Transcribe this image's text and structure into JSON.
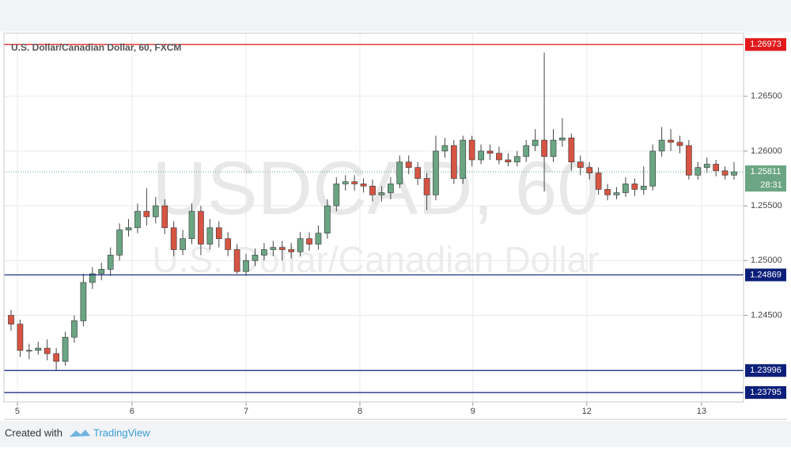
{
  "chart_data": {
    "type": "candlestick",
    "title": "U.S. Dollar/Canadian Dollar, 60, FXCM",
    "watermark": "USDCAD, 60",
    "watermark_subtitle": "U.S. Dollar/Canadian Dollar",
    "up_color": "#6ba583",
    "down_color": "#d75442",
    "open": [
      1.245,
      1.2442,
      1.2418,
      1.2418,
      1.242,
      1.2415,
      1.2408,
      1.243,
      1.2445,
      1.248,
      1.2488,
      1.2492,
      1.2505,
      1.2528,
      1.253,
      1.2545,
      1.254,
      1.255,
      1.253,
      1.251,
      1.252,
      1.2545,
      1.2515,
      1.253,
      1.252,
      1.251,
      1.249,
      1.25,
      1.2505,
      1.251,
      1.2512,
      1.251,
      1.2508,
      1.252,
      1.2515,
      1.2525,
      1.255,
      1.257,
      1.2572,
      1.257,
      1.2568,
      1.256,
      1.2562,
      1.257,
      1.259,
      1.2585,
      1.2575,
      1.256,
      1.26,
      1.2605,
      1.2575,
      1.261,
      1.2592,
      1.26,
      1.2598,
      1.2592,
      1.259,
      1.2595,
      1.2605,
      1.261,
      1.2595,
      1.261,
      1.2612,
      1.259,
      1.2585,
      1.258,
      1.2565,
      1.256,
      1.2562,
      1.257,
      1.2565,
      1.2568,
      1.26,
      1.261,
      1.2608,
      1.2605,
      1.2578,
      1.2585,
      1.2588,
      1.2582,
      1.2578
    ],
    "high": [
      1.2455,
      1.2446,
      1.2424,
      1.2426,
      1.2428,
      1.242,
      1.2435,
      1.245,
      1.2488,
      1.2494,
      1.2498,
      1.2512,
      1.2534,
      1.2538,
      1.2552,
      1.2566,
      1.2558,
      1.2556,
      1.2536,
      1.2528,
      1.2552,
      1.255,
      1.2538,
      1.2536,
      1.2526,
      1.2515,
      1.2506,
      1.2511,
      1.2516,
      1.2518,
      1.2518,
      1.2516,
      1.2526,
      1.2526,
      1.2532,
      1.2556,
      1.2576,
      1.2578,
      1.2578,
      1.2575,
      1.2574,
      1.2568,
      1.2576,
      1.2596,
      1.2596,
      1.259,
      1.258,
      1.2614,
      1.2612,
      1.261,
      1.2614,
      1.2614,
      1.2606,
      1.2606,
      1.2604,
      1.2598,
      1.26,
      1.261,
      1.262,
      1.269,
      1.262,
      1.263,
      1.2616,
      1.2596,
      1.259,
      1.2585,
      1.257,
      1.2567,
      1.2576,
      1.2575,
      1.2586,
      1.2606,
      1.2622,
      1.262,
      1.2614,
      1.261,
      1.259,
      1.2594,
      1.2592,
      1.2586,
      1.259
    ],
    "low": [
      1.2436,
      1.2412,
      1.241,
      1.2414,
      1.2409,
      1.24,
      1.2404,
      1.2425,
      1.244,
      1.2474,
      1.2482,
      1.2486,
      1.25,
      1.2522,
      1.2525,
      1.2532,
      1.2534,
      1.2524,
      1.2504,
      1.2505,
      1.2515,
      1.2505,
      1.251,
      1.2512,
      1.2504,
      1.2488,
      1.2486,
      1.2495,
      1.25,
      1.2504,
      1.25,
      1.2502,
      1.2504,
      1.2509,
      1.251,
      1.252,
      1.2545,
      1.2564,
      1.2564,
      1.2562,
      1.2554,
      1.2554,
      1.2556,
      1.2566,
      1.2579,
      1.2569,
      1.2546,
      1.2555,
      1.2594,
      1.257,
      1.257,
      1.2586,
      1.2588,
      1.2592,
      1.2588,
      1.2586,
      1.2586,
      1.259,
      1.26,
      1.2563,
      1.259,
      1.2604,
      1.2582,
      1.2578,
      1.2574,
      1.256,
      1.2555,
      1.2556,
      1.2558,
      1.2559,
      1.256,
      1.2564,
      1.2595,
      1.26,
      1.2598,
      1.2574,
      1.2574,
      1.258,
      1.2577,
      1.2574,
      1.2574
    ],
    "close": [
      1.2442,
      1.2418,
      1.2418,
      1.242,
      1.2415,
      1.2408,
      1.243,
      1.2445,
      1.248,
      1.2488,
      1.2492,
      1.2505,
      1.2528,
      1.253,
      1.2545,
      1.254,
      1.255,
      1.253,
      1.251,
      1.252,
      1.2545,
      1.2515,
      1.253,
      1.252,
      1.251,
      1.249,
      1.25,
      1.2505,
      1.251,
      1.2512,
      1.251,
      1.2508,
      1.252,
      1.2515,
      1.2525,
      1.255,
      1.257,
      1.2572,
      1.257,
      1.2568,
      1.256,
      1.2562,
      1.257,
      1.259,
      1.2585,
      1.2575,
      1.256,
      1.26,
      1.2605,
      1.2575,
      1.261,
      1.2592,
      1.26,
      1.2598,
      1.2592,
      1.259,
      1.2595,
      1.2605,
      1.261,
      1.2595,
      1.261,
      1.2612,
      1.259,
      1.2585,
      1.258,
      1.2565,
      1.256,
      1.2562,
      1.257,
      1.2565,
      1.2568,
      1.26,
      1.261,
      1.2608,
      1.2605,
      1.2578,
      1.2585,
      1.2588,
      1.2582,
      1.2578,
      1.2581
    ],
    "xlim": [
      -0.525,
      81.05
    ],
    "xticks": [
      {
        "value": 0.7,
        "label": "5"
      },
      {
        "value": 13.39,
        "label": "6"
      },
      {
        "value": 26.0,
        "label": "7"
      },
      {
        "value": 38.6,
        "label": "8"
      },
      {
        "value": 51.1,
        "label": "9"
      },
      {
        "value": 63.7,
        "label": "12"
      },
      {
        "value": 76.4,
        "label": "13"
      }
    ],
    "ylim": [
      1.23709,
      1.27076
    ],
    "yticks": [
      {
        "value": 1.245,
        "label": "1.24500"
      },
      {
        "value": 1.25,
        "label": "1.25000"
      },
      {
        "value": 1.255,
        "label": "1.25500"
      },
      {
        "value": 1.26,
        "label": "1.26000"
      },
      {
        "value": 1.265,
        "label": "1.26500"
      }
    ],
    "grid": true,
    "price_lines": [
      {
        "value": 1.26973,
        "color": "#e31a1c"
      },
      {
        "value": 1.24869,
        "color": "#0b1f7a"
      },
      {
        "value": 1.23996,
        "color": "#0b1f7a"
      },
      {
        "value": 1.23795,
        "color": "#0b1f7a"
      }
    ],
    "last_price": {
      "value": 1.25811,
      "countdown": "28:31",
      "color": "#6ba583"
    }
  },
  "footer": {
    "created_with": "Created with",
    "brand": "TradingView"
  }
}
